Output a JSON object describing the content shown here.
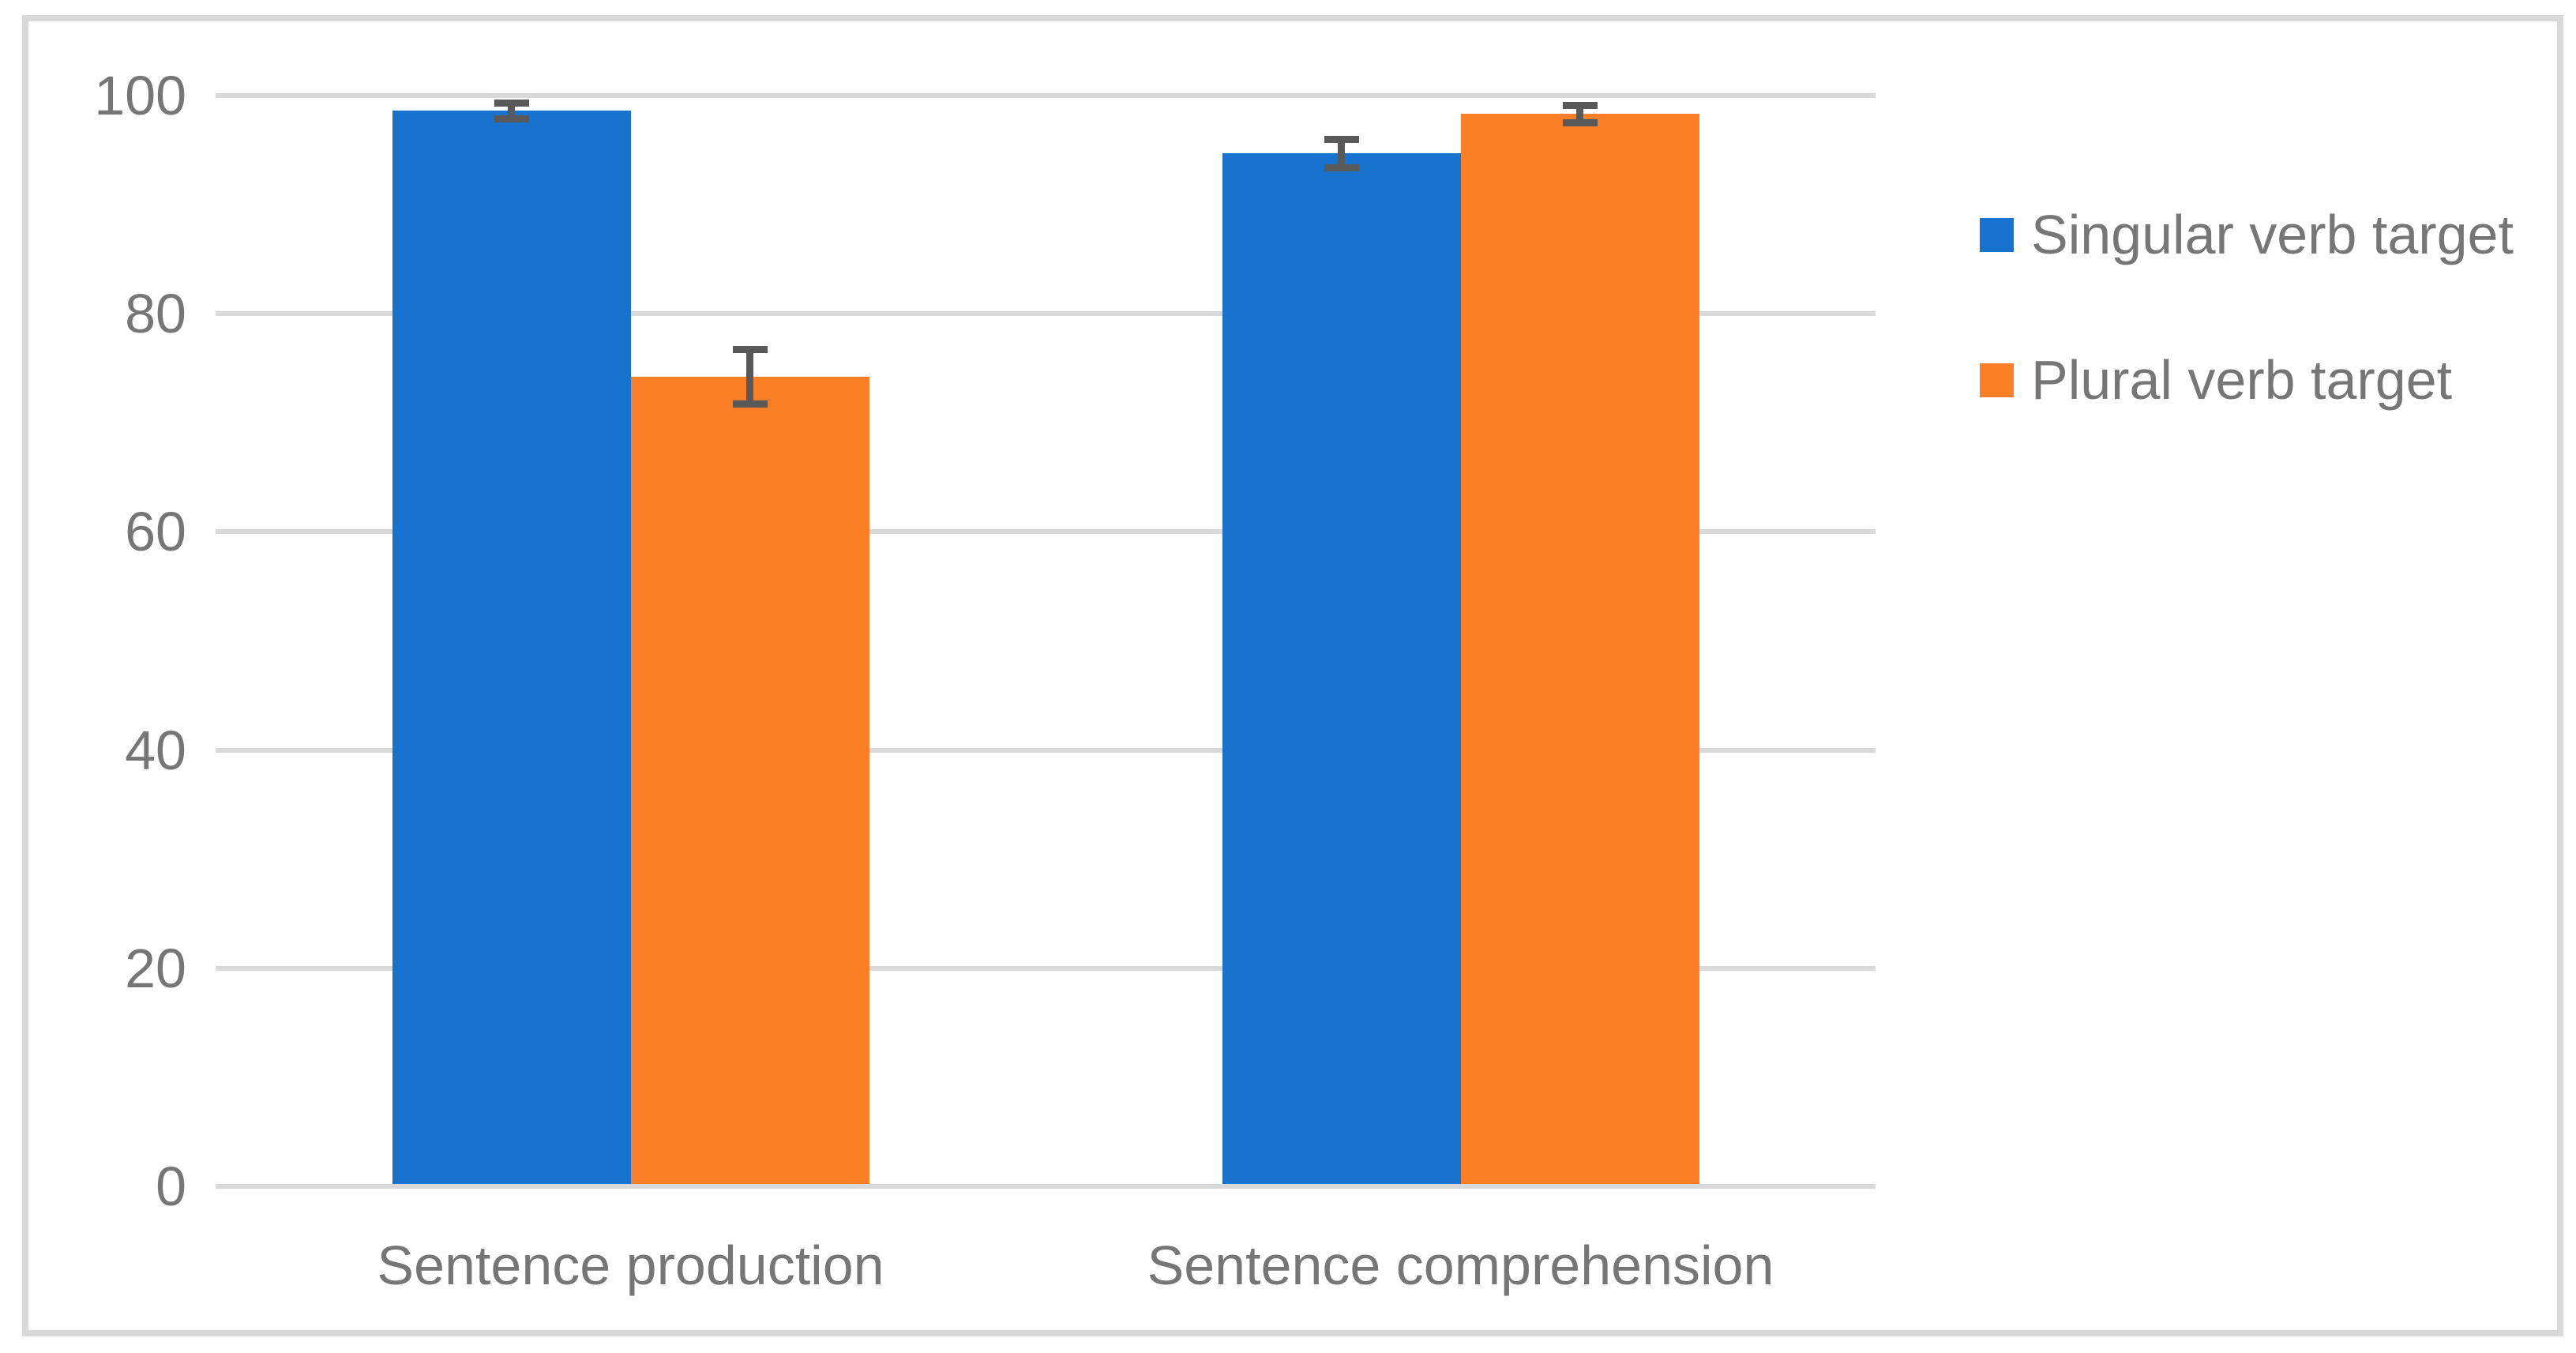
{
  "chart_data": {
    "type": "bar",
    "title": "",
    "categories": [
      "Sentence production",
      "Sentence comprehension"
    ],
    "series": [
      {
        "name": "Singular verb target",
        "color": "#1773CD",
        "values": [
          98.6,
          94.7
        ],
        "errors": [
          0.7,
          1.3
        ]
      },
      {
        "name": "Plural verb target",
        "color": "#FC7E27",
        "values": [
          74.2,
          98.3
        ],
        "errors": [
          2.5,
          0.8
        ]
      }
    ],
    "ylim": [
      0,
      100
    ],
    "yticks": [
      0,
      20,
      40,
      60,
      80,
      100
    ],
    "grid": "horizontal",
    "legend_position": "right",
    "error_bars": true
  },
  "style": {
    "grid_color": "#d9d9d9",
    "frame_color": "#d9d9d9",
    "text_color": "#767676",
    "error_bar_color": "#595959",
    "background": "#ffffff"
  }
}
